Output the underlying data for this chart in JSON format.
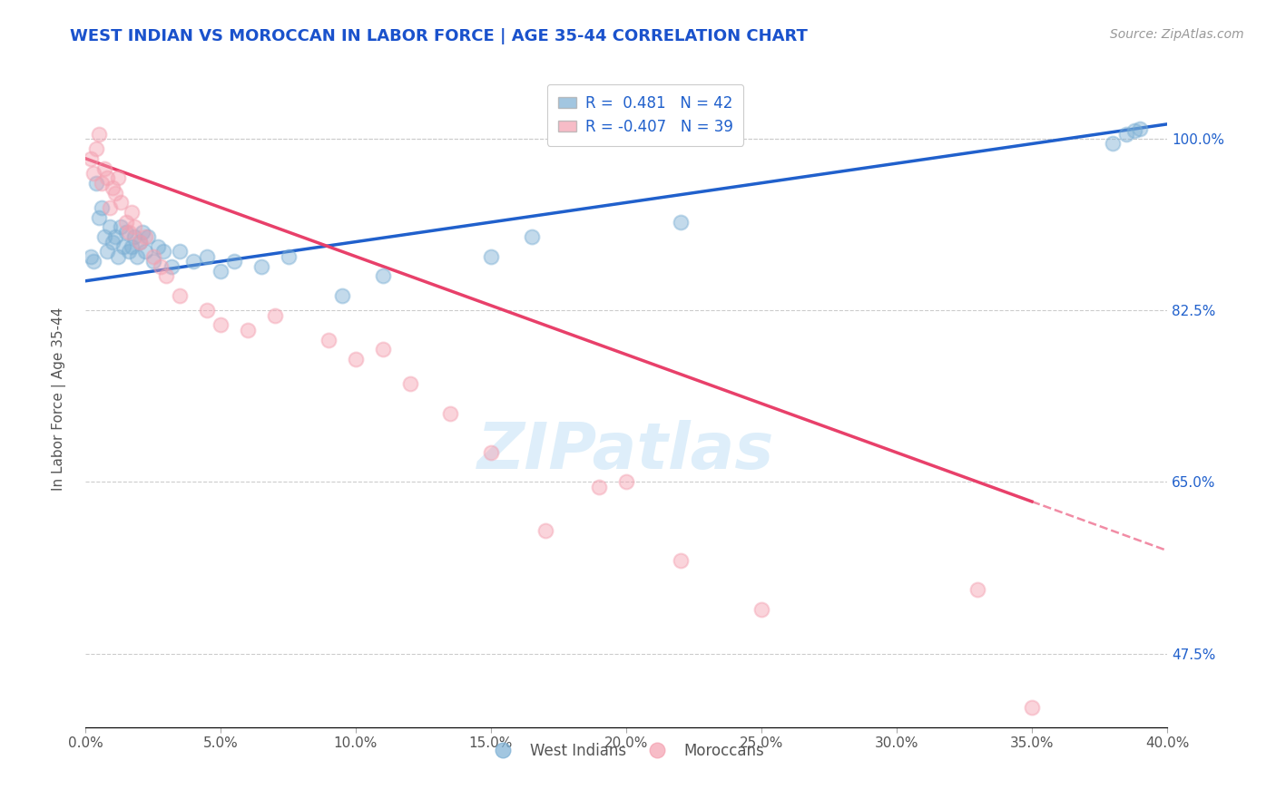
{
  "title": "WEST INDIAN VS MOROCCAN IN LABOR FORCE | AGE 35-44 CORRELATION CHART",
  "source": "Source: ZipAtlas.com",
  "ylabel": "In Labor Force | Age 35-44",
  "xlim": [
    0.0,
    40.0
  ],
  "ylim": [
    40.0,
    107.0
  ],
  "y_ticks": [
    47.5,
    65.0,
    82.5,
    100.0
  ],
  "x_ticks": [
    0.0,
    5.0,
    10.0,
    15.0,
    20.0,
    25.0,
    30.0,
    35.0,
    40.0
  ],
  "legend_label1": "West Indians",
  "legend_label2": "Moroccans",
  "r1": 0.481,
  "n1": 42,
  "r2": -0.407,
  "n2": 39,
  "blue_color": "#7BAFD4",
  "pink_color": "#F4A0B0",
  "blue_line_color": "#2060CC",
  "pink_line_color": "#E8406A",
  "title_color": "#1A52CC",
  "source_color": "#999999",
  "watermark": "ZIPatlas",
  "west_indians_x": [
    0.2,
    0.3,
    0.4,
    0.5,
    0.6,
    0.7,
    0.8,
    0.9,
    1.0,
    1.1,
    1.2,
    1.3,
    1.4,
    1.5,
    1.6,
    1.7,
    1.8,
    1.9,
    2.0,
    2.1,
    2.2,
    2.3,
    2.5,
    2.7,
    2.9,
    3.2,
    3.5,
    4.0,
    4.5,
    5.0,
    5.5,
    6.5,
    7.5,
    9.5,
    11.0,
    15.0,
    16.5,
    22.0,
    38.0,
    38.5,
    38.8,
    39.0
  ],
  "west_indians_y": [
    88.0,
    87.5,
    95.5,
    92.0,
    93.0,
    90.0,
    88.5,
    91.0,
    89.5,
    90.0,
    88.0,
    91.0,
    89.0,
    90.5,
    88.5,
    89.0,
    90.0,
    88.0,
    89.5,
    90.5,
    88.5,
    90.0,
    87.5,
    89.0,
    88.5,
    87.0,
    88.5,
    87.5,
    88.0,
    86.5,
    87.5,
    87.0,
    88.0,
    84.0,
    86.0,
    88.0,
    90.0,
    91.5,
    99.5,
    100.5,
    100.8,
    101.0
  ],
  "moroccans_x": [
    0.2,
    0.3,
    0.4,
    0.5,
    0.6,
    0.7,
    0.8,
    0.9,
    1.0,
    1.1,
    1.2,
    1.3,
    1.5,
    1.6,
    1.7,
    1.8,
    2.0,
    2.2,
    2.5,
    2.8,
    3.0,
    3.5,
    4.5,
    5.0,
    6.0,
    7.0,
    9.0,
    10.0,
    11.0,
    12.0,
    13.5,
    15.0,
    17.0,
    19.0,
    20.0,
    22.0,
    25.0,
    33.0,
    35.0
  ],
  "moroccans_y": [
    98.0,
    96.5,
    99.0,
    100.5,
    95.5,
    97.0,
    96.0,
    93.0,
    95.0,
    94.5,
    96.0,
    93.5,
    91.5,
    90.5,
    92.5,
    91.0,
    89.5,
    90.0,
    88.0,
    87.0,
    86.0,
    84.0,
    82.5,
    81.0,
    80.5,
    82.0,
    79.5,
    77.5,
    78.5,
    75.0,
    72.0,
    68.0,
    60.0,
    64.5,
    65.0,
    57.0,
    52.0,
    54.0,
    42.0
  ],
  "blue_line_x0": 0.0,
  "blue_line_y0": 85.5,
  "blue_line_x1": 40.0,
  "blue_line_y1": 101.5,
  "pink_line_x0": 0.0,
  "pink_line_y0": 98.0,
  "pink_line_x1": 35.0,
  "pink_line_y1": 63.0,
  "pink_dash_x0": 35.0,
  "pink_dash_y0": 63.0,
  "pink_dash_x1": 40.0,
  "pink_dash_y1": 58.0
}
